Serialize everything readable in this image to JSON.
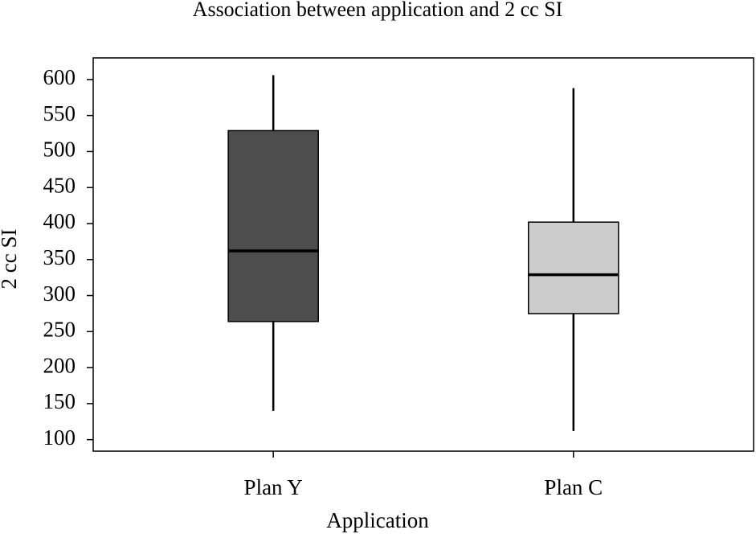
{
  "chart_data": {
    "type": "box",
    "title": "Association between application and 2 cc SI",
    "x_label": "Application",
    "y_label": "2 cc SI",
    "categories": [
      "Plan Y",
      "Plan C"
    ],
    "whisker_low": [
      140,
      112
    ],
    "q1": [
      264,
      275
    ],
    "median": [
      362,
      329
    ],
    "q3": [
      529,
      402
    ],
    "whisker_high": [
      606,
      588
    ],
    "colors": [
      "#4d4d4d",
      "#cccccc"
    ],
    "ylim": [
      84,
      630
    ],
    "yticks": [
      100,
      150,
      200,
      250,
      300,
      350,
      400,
      450,
      500,
      550,
      600
    ]
  }
}
